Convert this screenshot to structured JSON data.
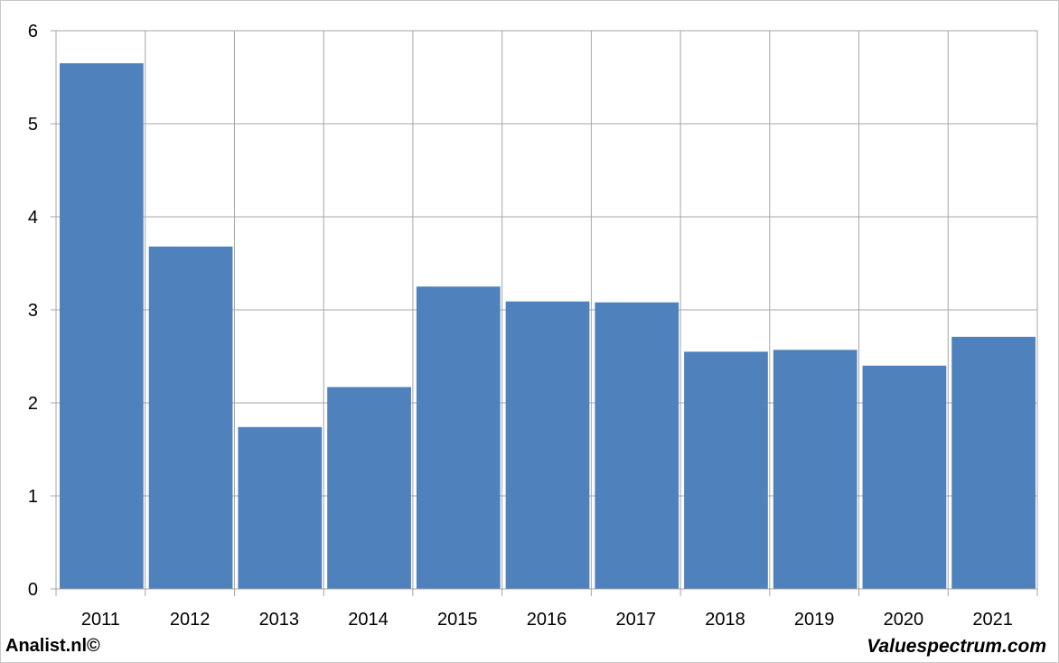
{
  "chart_data": {
    "type": "bar",
    "categories": [
      "2011",
      "2012",
      "2013",
      "2014",
      "2015",
      "2016",
      "2017",
      "2018",
      "2019",
      "2020",
      "2021"
    ],
    "values": [
      5.65,
      3.68,
      1.74,
      2.17,
      3.25,
      3.09,
      3.08,
      2.55,
      2.57,
      2.4,
      2.71
    ],
    "yticks": [
      "0",
      "1",
      "2",
      "3",
      "4",
      "5",
      "6"
    ],
    "ylim": [
      0,
      6
    ],
    "grid": true,
    "bar_color": "#4f81bd",
    "grid_color": "#a6a6a6"
  },
  "footer": {
    "left": "Analist.nl©",
    "right": "Valuespectrum.com"
  }
}
